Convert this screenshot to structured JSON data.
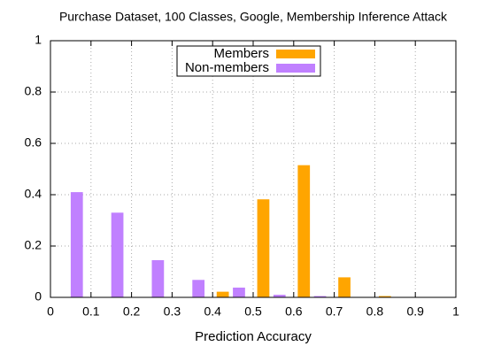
{
  "chart_data": {
    "type": "bar",
    "title": "Purchase Dataset, 100 Classes, Google, Membership Inference Attack",
    "x_label": "Prediction Accuracy",
    "x": [
      0.05,
      0.15,
      0.25,
      0.35,
      0.45,
      0.55,
      0.65,
      0.75,
      0.85,
      0.95
    ],
    "series": [
      {
        "name": "Members",
        "color": "#ffa500",
        "values": [
          0,
          0,
          0,
          0,
          0.022,
          0.382,
          0.515,
          0.078,
          0.005,
          0
        ]
      },
      {
        "name": "Non-members",
        "color": "#c080ff",
        "values": [
          0.41,
          0.33,
          0.145,
          0.068,
          0.038,
          0.01,
          0.005,
          0,
          0,
          0
        ]
      }
    ],
    "xlim": [
      0,
      1
    ],
    "xticks": [
      0,
      0.1,
      0.2,
      0.3,
      0.4,
      0.5,
      0.6,
      0.7,
      0.8,
      0.9,
      1
    ],
    "ylim": [
      0,
      1
    ],
    "yticks": [
      0,
      0.2,
      0.4,
      0.6,
      0.8,
      1
    ],
    "grid": true,
    "legend": "top"
  }
}
